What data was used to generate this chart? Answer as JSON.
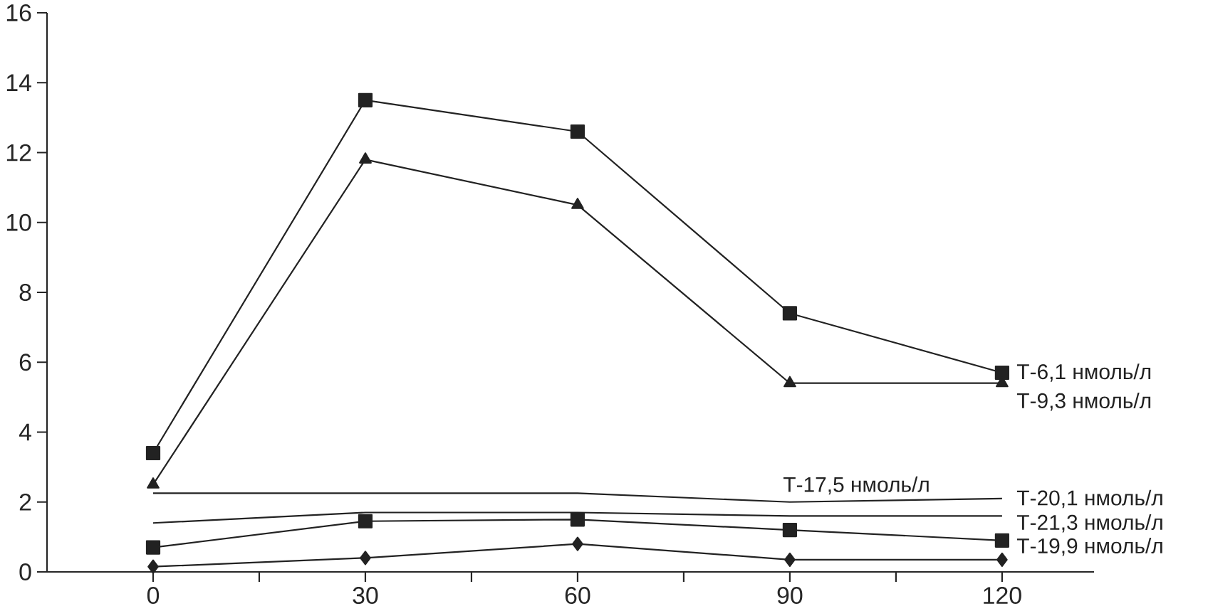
{
  "chart_data": {
    "type": "line",
    "x": [
      0,
      30,
      60,
      90,
      120
    ],
    "series": [
      {
        "name": "Т-6,1 нмоль/л",
        "color": "#222222",
        "marker": "square",
        "values": [
          3.4,
          13.5,
          12.6,
          7.4,
          5.7
        ]
      },
      {
        "name": "Т-9,3 нмоль/л",
        "color": "#222222",
        "marker": "triangle",
        "values": [
          2.5,
          11.8,
          10.5,
          5.4,
          5.4
        ]
      },
      {
        "name": "Т-17,5 нмоль/л",
        "color": "#222222",
        "marker": "none",
        "values": [
          2.25,
          2.25,
          2.25,
          2.0,
          2.1
        ]
      },
      {
        "name": "Т-20,1 нмоль/л",
        "color": "#222222",
        "marker": "none",
        "values": [
          1.4,
          1.7,
          1.7,
          1.6,
          1.6
        ]
      },
      {
        "name": "Т-21,3 нмоль/л",
        "color": "#222222",
        "marker": "square",
        "values": [
          0.7,
          1.45,
          1.5,
          1.2,
          0.9
        ]
      },
      {
        "name": "Т-19,9 нмоль/л",
        "color": "#222222",
        "marker": "diamond",
        "values": [
          0.15,
          0.4,
          0.8,
          0.35,
          0.35
        ]
      }
    ],
    "xlim": [
      -15,
      133
    ],
    "ylim": [
      0,
      16
    ],
    "xticks": [
      0,
      {
        "value": 15,
        "label": null
      },
      30,
      {
        "value": 45,
        "label": null
      },
      60,
      {
        "value": 75,
        "label": null
      },
      90,
      {
        "value": 105,
        "label": null
      },
      120
    ],
    "yticks": [
      0,
      2,
      4,
      6,
      8,
      10,
      12,
      14,
      16
    ],
    "line_style": "solid",
    "grid": false
  }
}
